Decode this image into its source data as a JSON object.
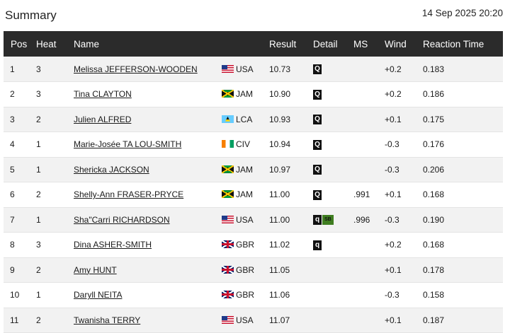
{
  "header": {
    "title": "Summary",
    "datetime": "14 Sep 2025 20:20"
  },
  "columns": {
    "pos": "Pos",
    "heat": "Heat",
    "name": "Name",
    "result": "Result",
    "detail": "Detail",
    "ms": "MS",
    "wind": "Wind",
    "reaction": "Reaction Time"
  },
  "rows": [
    {
      "pos": "1",
      "heat": "3",
      "name": "Melissa JEFFERSON-WOODEN",
      "country": "USA",
      "flag_icon": "usa-flag-icon",
      "result": "10.73",
      "q": "Q",
      "sb": "",
      "ms": "",
      "wind": "+0.2",
      "reaction": "0.183"
    },
    {
      "pos": "2",
      "heat": "3",
      "name": "Tina CLAYTON",
      "country": "JAM",
      "flag_icon": "jamaica-flag-icon",
      "result": "10.90",
      "q": "Q",
      "sb": "",
      "ms": "",
      "wind": "+0.2",
      "reaction": "0.186"
    },
    {
      "pos": "3",
      "heat": "2",
      "name": "Julien ALFRED",
      "country": "LCA",
      "flag_icon": "saint-lucia-flag-icon",
      "result": "10.93",
      "q": "Q",
      "sb": "",
      "ms": "",
      "wind": "+0.1",
      "reaction": "0.175"
    },
    {
      "pos": "4",
      "heat": "1",
      "name": "Marie-Josée TA LOU-SMITH",
      "country": "CIV",
      "flag_icon": "ivory-coast-flag-icon",
      "result": "10.94",
      "q": "Q",
      "sb": "",
      "ms": "",
      "wind": "-0.3",
      "reaction": "0.176"
    },
    {
      "pos": "5",
      "heat": "1",
      "name": "Shericka JACKSON",
      "country": "JAM",
      "flag_icon": "jamaica-flag-icon",
      "result": "10.97",
      "q": "Q",
      "sb": "",
      "ms": "",
      "wind": "-0.3",
      "reaction": "0.206"
    },
    {
      "pos": "6",
      "heat": "2",
      "name": "Shelly-Ann FRASER-PRYCE",
      "country": "JAM",
      "flag_icon": "jamaica-flag-icon",
      "result": "11.00",
      "q": "Q",
      "sb": "",
      "ms": ".991",
      "wind": "+0.1",
      "reaction": "0.168"
    },
    {
      "pos": "7",
      "heat": "1",
      "name": "Sha\"Carri RICHARDSON",
      "country": "USA",
      "flag_icon": "usa-flag-icon",
      "result": "11.00",
      "q": "q",
      "sb": "SB",
      "ms": ".996",
      "wind": "-0.3",
      "reaction": "0.190"
    },
    {
      "pos": "8",
      "heat": "3",
      "name": "Dina ASHER-SMITH",
      "country": "GBR",
      "flag_icon": "great-britain-flag-icon",
      "result": "11.02",
      "q": "q",
      "sb": "",
      "ms": "",
      "wind": "+0.2",
      "reaction": "0.168"
    },
    {
      "pos": "9",
      "heat": "2",
      "name": "Amy HUNT",
      "country": "GBR",
      "flag_icon": "great-britain-flag-icon",
      "result": "11.05",
      "q": "",
      "sb": "",
      "ms": "",
      "wind": "+0.1",
      "reaction": "0.178"
    },
    {
      "pos": "10",
      "heat": "1",
      "name": "Daryll NEITA",
      "country": "GBR",
      "flag_icon": "great-britain-flag-icon",
      "result": "11.06",
      "q": "",
      "sb": "",
      "ms": "",
      "wind": "-0.3",
      "reaction": "0.158"
    },
    {
      "pos": "11",
      "heat": "2",
      "name": "Twanisha TERRY",
      "country": "USA",
      "flag_icon": "usa-flag-icon",
      "result": "11.07",
      "q": "",
      "sb": "",
      "ms": "",
      "wind": "+0.1",
      "reaction": "0.187"
    }
  ]
}
